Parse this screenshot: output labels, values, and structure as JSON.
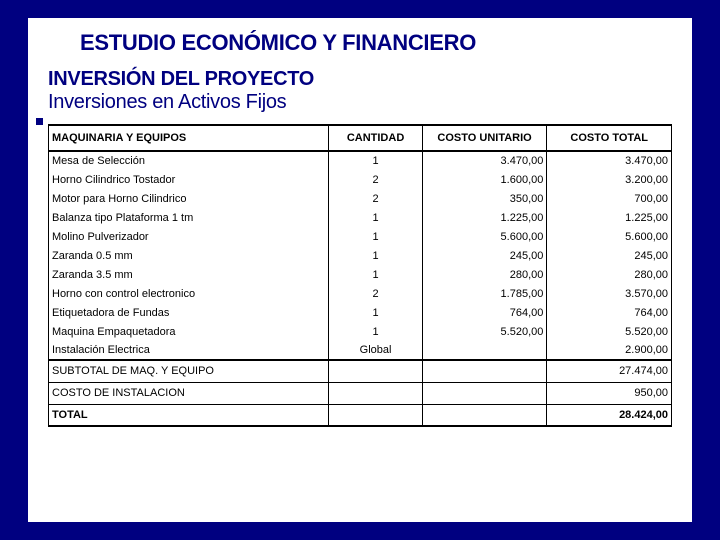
{
  "title": "ESTUDIO ECONÓMICO Y FINANCIERO",
  "subtitle1": "INVERSIÓN DEL PROYECTO",
  "subtitle2": "Inversiones en Activos Fijos",
  "table": {
    "headers": {
      "desc": "MAQUINARIA Y EQUIPOS",
      "qty": "CANTIDAD",
      "unit": "COSTO UNITARIO",
      "total": "COSTO TOTAL"
    },
    "rows": [
      {
        "desc": "Mesa de Selección",
        "qty": "1",
        "unit": "3.470,00",
        "total": "3.470,00"
      },
      {
        "desc": "Horno Cilindrico Tostador",
        "qty": "2",
        "unit": "1.600,00",
        "total": "3.200,00"
      },
      {
        "desc": "Motor para Horno Cilindrico",
        "qty": "2",
        "unit": "350,00",
        "total": "700,00"
      },
      {
        "desc": "Balanza tipo Plataforma 1 tm",
        "qty": "1",
        "unit": "1.225,00",
        "total": "1.225,00"
      },
      {
        "desc": "Molino Pulverizador",
        "qty": "1",
        "unit": "5.600,00",
        "total": "5.600,00"
      },
      {
        "desc": "Zaranda 0.5 mm",
        "qty": "1",
        "unit": "245,00",
        "total": "245,00"
      },
      {
        "desc": "Zaranda 3.5 mm",
        "qty": "1",
        "unit": "280,00",
        "total": "280,00"
      },
      {
        "desc": "Horno con control electronico",
        "qty": "2",
        "unit": "1.785,00",
        "total": "3.570,00"
      },
      {
        "desc": "Etiquetadora de Fundas",
        "qty": "1",
        "unit": "764,00",
        "total": "764,00"
      },
      {
        "desc": "Maquina Empaquetadora",
        "qty": "1",
        "unit": "5.520,00",
        "total": "5.520,00"
      },
      {
        "desc": "Instalación Electrica",
        "qty": "Global",
        "unit": "",
        "total": "2.900,00"
      }
    ],
    "subtotal": {
      "label": "SUBTOTAL DE MAQ. Y EQUIPO",
      "total": "27.474,00"
    },
    "install": {
      "label": "COSTO DE INSTALACION",
      "total": "950,00"
    },
    "total": {
      "label": "TOTAL",
      "total": "28.424,00"
    }
  }
}
